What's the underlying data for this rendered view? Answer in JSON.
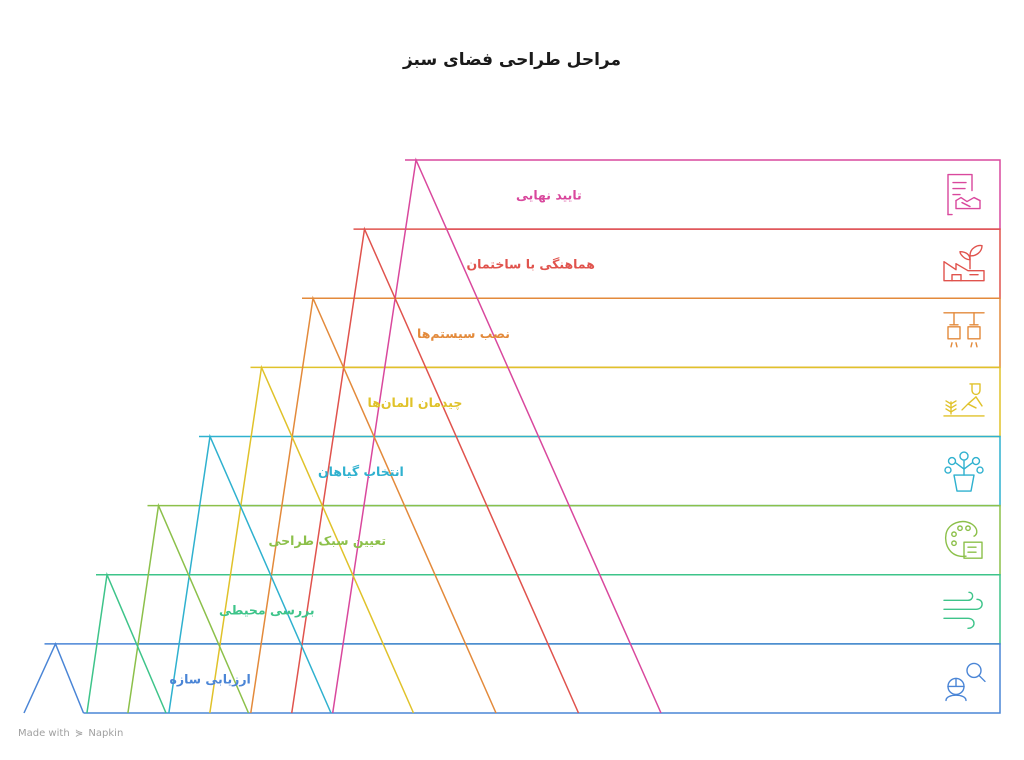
{
  "title": "مراحل طراحی فضای سبز",
  "footer": {
    "made_with": "Made with",
    "brand": "Napkin"
  },
  "steps": [
    {
      "label": "تایید نهایی",
      "color": "#d9489d",
      "icon": "contract-handshake-icon"
    },
    {
      "label": "هماهنگی با ساختمان",
      "color": "#e0534d",
      "icon": "building-plant-icon"
    },
    {
      "label": "نصب سیستم‌ها",
      "color": "#e38a3b",
      "icon": "hanging-lights-icon"
    },
    {
      "label": "چیدمان المان‌ها",
      "color": "#e0c22a",
      "icon": "gardener-icon"
    },
    {
      "label": "انتخاب گیاهان",
      "color": "#2fb1cf",
      "icon": "potted-plant-icon"
    },
    {
      "label": "تعیین سبک طراحی",
      "color": "#8cc04a",
      "icon": "palette-icon"
    },
    {
      "label": "بررسی محیطی",
      "color": "#3ec48a",
      "icon": "wind-icon"
    },
    {
      "label": "ارزیابی سازه",
      "color": "#4a85d6",
      "icon": "inspector-search-icon"
    }
  ]
}
